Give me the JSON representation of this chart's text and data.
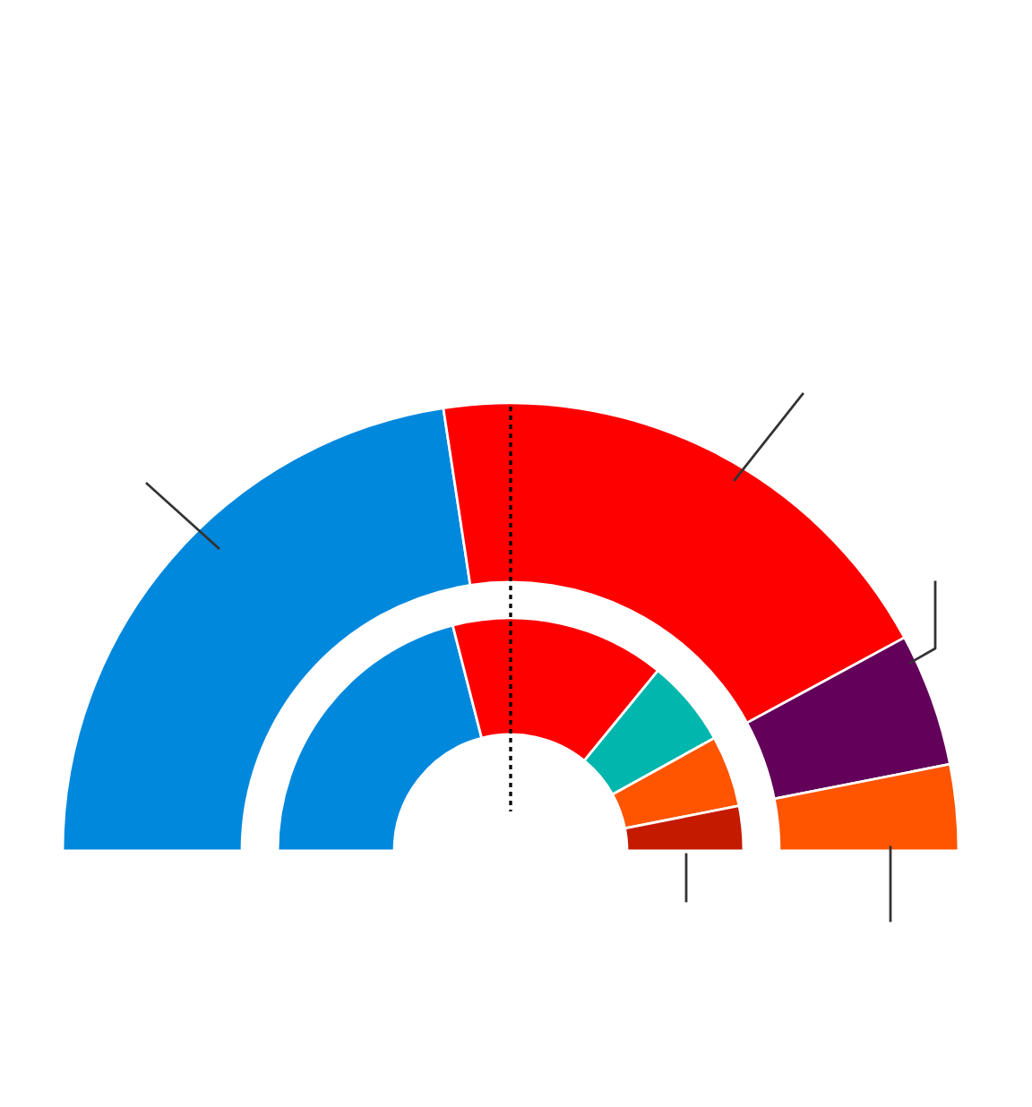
{
  "chart_data": {
    "type": "donut",
    "categories": [
      null,
      null,
      null,
      null,
      null,
      null
    ],
    "series": [
      {
        "values": [
          45.2,
          39.0,
          null,
          9.6,
          6.2,
          null
        ],
        "colors": [
          "#0088dd",
          "#ff0000",
          null,
          "#62005a",
          "#ff5400",
          null
        ]
      },
      {
        "values": [
          42.0,
          29.8,
          12.1,
          null,
          9.9,
          6.2
        ],
        "colors": [
          "#0088dd",
          "#ff0000",
          "#00b6ad",
          null,
          "#ff5400",
          "#c41a00"
        ]
      }
    ]
  }
}
